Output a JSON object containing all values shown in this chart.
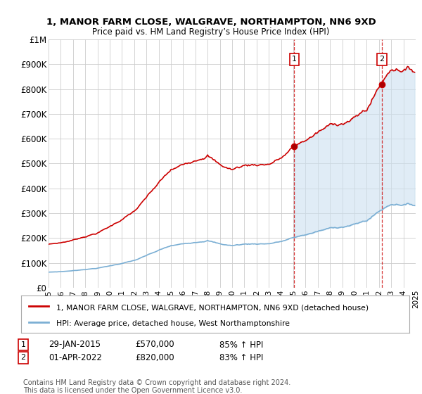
{
  "title": "1, MANOR FARM CLOSE, WALGRAVE, NORTHAMPTON, NN6 9XD",
  "subtitle": "Price paid vs. HM Land Registry’s House Price Index (HPI)",
  "house_color": "#cc0000",
  "hpi_color": "#7bafd4",
  "fill_color": "#cce0f0",
  "background_color": "#ffffff",
  "grid_color": "#cccccc",
  "sale1_date": 2015.08,
  "sale1_price": 570000,
  "sale2_date": 2022.25,
  "sale2_price": 820000,
  "legend_house": "1, MANOR FARM CLOSE, WALGRAVE, NORTHAMPTON, NN6 9XD (detached house)",
  "legend_hpi": "HPI: Average price, detached house, West Northamptonshire",
  "footer": "Contains HM Land Registry data © Crown copyright and database right 2024.\nThis data is licensed under the Open Government Licence v3.0.",
  "xmin": 1995,
  "xmax": 2025,
  "ylim": [
    0,
    1000000
  ],
  "yticks": [
    0,
    100000,
    200000,
    300000,
    400000,
    500000,
    600000,
    700000,
    800000,
    900000,
    1000000
  ],
  "ytick_labels": [
    "£0",
    "£100K",
    "£200K",
    "£300K",
    "£400K",
    "£500K",
    "£600K",
    "£700K",
    "£800K",
    "£900K",
    "£1M"
  ]
}
